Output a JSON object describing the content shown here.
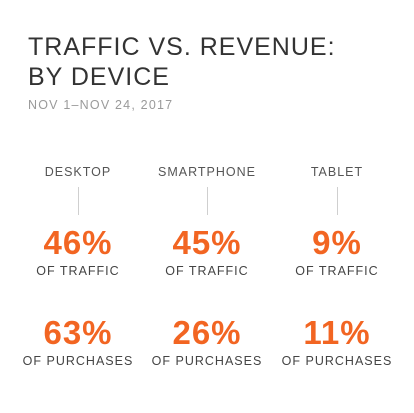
{
  "chart_data": {
    "type": "table",
    "title_lines": [
      "TRAFFIC VS. REVENUE:",
      "BY DEVICE"
    ],
    "subtitle": "NOV 1–NOV 24, 2017",
    "metric_labels": {
      "traffic": "OF TRAFFIC",
      "purchases": "OF PURCHASES"
    },
    "accent_color": "#f26522",
    "devices": [
      {
        "name": "DESKTOP",
        "traffic": "46%",
        "purchases": "63%"
      },
      {
        "name": "SMARTPHONE",
        "traffic": "45%",
        "purchases": "26%"
      },
      {
        "name": "TABLET",
        "traffic": "9%",
        "purchases": "11%"
      }
    ]
  }
}
